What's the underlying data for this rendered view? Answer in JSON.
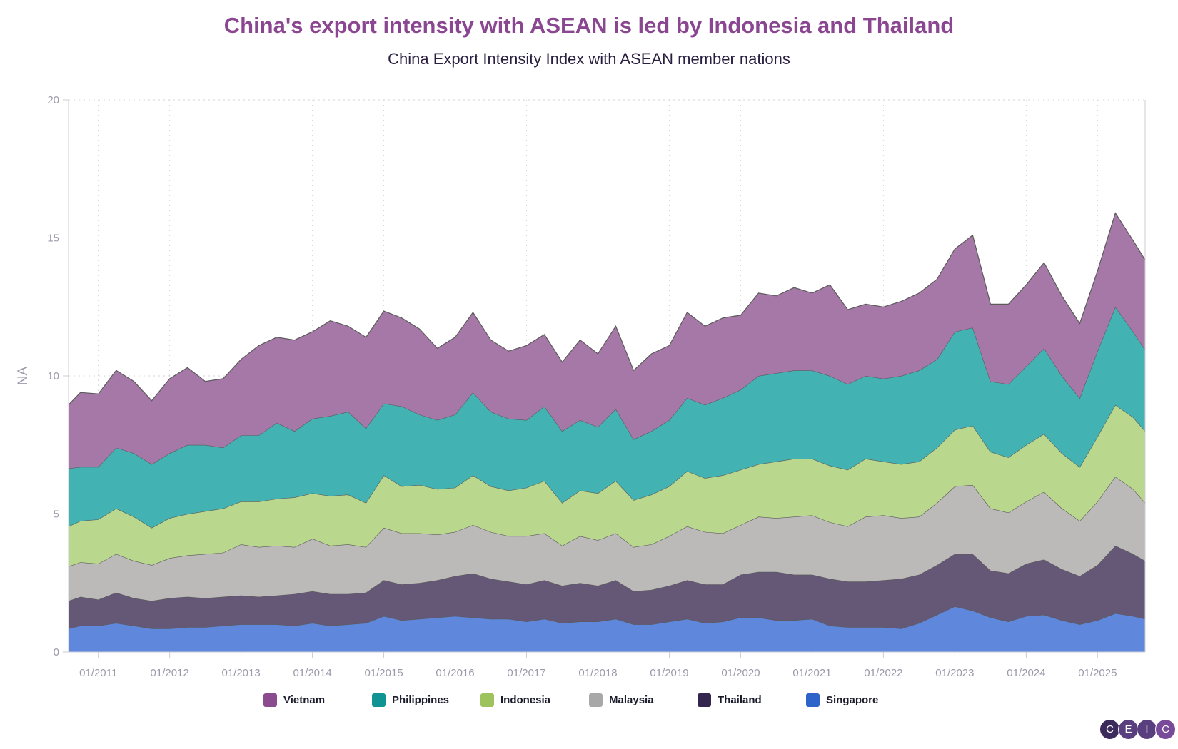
{
  "chart_data": {
    "type": "area",
    "stacked": true,
    "title": "China's export intensity with ASEAN is led by Indonesia and Thailand",
    "subtitle": "China Export Intensity Index with ASEAN member nations",
    "xlabel": "",
    "ylabel": "NA",
    "ylim": [
      0,
      20
    ],
    "yticks": [
      "0",
      "5",
      "10",
      "15",
      "20"
    ],
    "xticks": [
      "01/2011",
      "01/2012",
      "01/2013",
      "01/2014",
      "01/2015",
      "01/2016",
      "01/2017",
      "01/2018",
      "01/2019",
      "01/2020",
      "01/2021",
      "01/2022",
      "01/2023",
      "01/2024",
      "01/2025"
    ],
    "grid": true,
    "legend": "bottom",
    "x": [
      "2010-08",
      "2010-10",
      "2011-01",
      "2011-04",
      "2011-07",
      "2011-10",
      "2012-01",
      "2012-04",
      "2012-07",
      "2012-10",
      "2013-01",
      "2013-04",
      "2013-07",
      "2013-10",
      "2014-01",
      "2014-04",
      "2014-07",
      "2014-10",
      "2015-01",
      "2015-04",
      "2015-07",
      "2015-10",
      "2016-01",
      "2016-04",
      "2016-07",
      "2016-10",
      "2017-01",
      "2017-04",
      "2017-07",
      "2017-10",
      "2018-01",
      "2018-04",
      "2018-07",
      "2018-10",
      "2019-01",
      "2019-04",
      "2019-07",
      "2019-10",
      "2020-01",
      "2020-04",
      "2020-07",
      "2020-10",
      "2021-01",
      "2021-04",
      "2021-07",
      "2021-10",
      "2022-01",
      "2022-04",
      "2022-07",
      "2022-10",
      "2023-01",
      "2023-04",
      "2023-07",
      "2023-10",
      "2024-01",
      "2024-04",
      "2024-07",
      "2024-10",
      "2025-01",
      "2025-04",
      "2025-07",
      "2025-09"
    ],
    "series": [
      {
        "name": "Singapore",
        "color": "#2e63c9",
        "fill": "#5f87dc",
        "values": [
          0.85,
          0.95,
          0.95,
          1.05,
          0.95,
          0.85,
          0.85,
          0.9,
          0.9,
          0.95,
          1.0,
          1.0,
          1.0,
          0.95,
          1.05,
          0.95,
          1.0,
          1.05,
          1.3,
          1.15,
          1.2,
          1.25,
          1.3,
          1.25,
          1.2,
          1.2,
          1.1,
          1.2,
          1.05,
          1.1,
          1.1,
          1.2,
          1.0,
          1.0,
          1.1,
          1.2,
          1.05,
          1.1,
          1.25,
          1.25,
          1.15,
          1.15,
          1.2,
          0.95,
          0.9,
          0.9,
          0.9,
          0.85,
          1.05,
          1.35,
          1.65,
          1.5,
          1.25,
          1.1,
          1.3,
          1.35,
          1.15,
          1.0,
          1.15,
          1.4,
          1.3,
          1.2
        ]
      },
      {
        "name": "Thailand",
        "color": "#33254d",
        "fill": "#655876",
        "values": [
          1.0,
          1.05,
          0.95,
          1.1,
          1.0,
          1.0,
          1.1,
          1.1,
          1.05,
          1.05,
          1.05,
          1.0,
          1.05,
          1.15,
          1.15,
          1.15,
          1.1,
          1.1,
          1.3,
          1.3,
          1.3,
          1.35,
          1.45,
          1.6,
          1.45,
          1.35,
          1.35,
          1.4,
          1.35,
          1.4,
          1.3,
          1.4,
          1.2,
          1.25,
          1.3,
          1.4,
          1.4,
          1.35,
          1.55,
          1.65,
          1.75,
          1.65,
          1.6,
          1.7,
          1.65,
          1.65,
          1.7,
          1.8,
          1.75,
          1.8,
          1.9,
          2.05,
          1.7,
          1.75,
          1.9,
          2.0,
          1.85,
          1.75,
          2.0,
          2.45,
          2.25,
          2.1
        ]
      },
      {
        "name": "Malaysia",
        "color": "#a8a8a8",
        "fill": "#bbbab9",
        "values": [
          1.25,
          1.25,
          1.3,
          1.4,
          1.35,
          1.3,
          1.45,
          1.5,
          1.6,
          1.6,
          1.85,
          1.8,
          1.8,
          1.7,
          1.9,
          1.75,
          1.8,
          1.65,
          1.9,
          1.85,
          1.8,
          1.65,
          1.6,
          1.75,
          1.7,
          1.65,
          1.75,
          1.7,
          1.45,
          1.7,
          1.65,
          1.7,
          1.6,
          1.65,
          1.8,
          1.95,
          1.9,
          1.85,
          1.8,
          2.0,
          1.95,
          2.1,
          2.15,
          2.05,
          2.0,
          2.35,
          2.35,
          2.2,
          2.1,
          2.25,
          2.45,
          2.5,
          2.25,
          2.2,
          2.25,
          2.45,
          2.2,
          2.0,
          2.3,
          2.5,
          2.35,
          2.1
        ]
      },
      {
        "name": "Indonesia",
        "color": "#9dc35e",
        "fill": "#b9d78d",
        "values": [
          1.45,
          1.5,
          1.6,
          1.65,
          1.6,
          1.35,
          1.45,
          1.5,
          1.55,
          1.6,
          1.55,
          1.65,
          1.7,
          1.8,
          1.65,
          1.8,
          1.8,
          1.6,
          1.9,
          1.7,
          1.75,
          1.65,
          1.6,
          1.8,
          1.65,
          1.65,
          1.75,
          1.9,
          1.55,
          1.65,
          1.7,
          1.9,
          1.7,
          1.8,
          1.8,
          2.0,
          1.95,
          2.1,
          2.0,
          1.9,
          2.05,
          2.1,
          2.05,
          2.05,
          2.05,
          2.1,
          1.95,
          1.95,
          2.0,
          2.0,
          2.05,
          2.15,
          2.05,
          2.0,
          2.05,
          2.1,
          2.0,
          1.95,
          2.35,
          2.6,
          2.6,
          2.6
        ]
      },
      {
        "name": "Philippines",
        "color": "#0f9494",
        "fill": "#43b2b3",
        "values": [
          2.1,
          1.95,
          1.9,
          2.2,
          2.3,
          2.3,
          2.35,
          2.5,
          2.4,
          2.2,
          2.4,
          2.4,
          2.75,
          2.4,
          2.7,
          2.9,
          3.0,
          2.7,
          2.6,
          2.9,
          2.55,
          2.5,
          2.65,
          3.0,
          2.7,
          2.6,
          2.45,
          2.7,
          2.6,
          2.55,
          2.4,
          2.6,
          2.2,
          2.3,
          2.4,
          2.65,
          2.65,
          2.8,
          2.9,
          3.2,
          3.2,
          3.2,
          3.2,
          3.25,
          3.1,
          3.0,
          3.0,
          3.2,
          3.3,
          3.2,
          3.55,
          3.55,
          2.55,
          2.65,
          2.85,
          3.1,
          2.8,
          2.5,
          3.1,
          3.55,
          3.1,
          2.95
        ]
      },
      {
        "name": "Vietnam",
        "color": "#8b4c8f",
        "fill": "#a678a8",
        "values": [
          2.3,
          2.7,
          2.65,
          2.8,
          2.6,
          2.3,
          2.7,
          2.8,
          2.3,
          2.5,
          2.75,
          3.25,
          3.1,
          3.3,
          3.15,
          3.45,
          3.1,
          3.3,
          3.35,
          3.2,
          3.1,
          2.6,
          2.8,
          2.9,
          2.6,
          2.45,
          2.7,
          2.6,
          2.5,
          2.9,
          2.65,
          3.0,
          2.5,
          2.8,
          2.7,
          3.1,
          2.85,
          2.9,
          2.7,
          3.0,
          2.8,
          3.0,
          2.8,
          3.3,
          2.7,
          2.6,
          2.6,
          2.7,
          2.8,
          2.9,
          3.0,
          3.35,
          2.8,
          2.9,
          2.95,
          3.1,
          2.9,
          2.7,
          2.9,
          3.4,
          3.3,
          3.25
        ]
      }
    ],
    "legend_order": [
      "Vietnam",
      "Philippines",
      "Indonesia",
      "Malaysia",
      "Thailand",
      "Singapore"
    ]
  },
  "logo": {
    "letters": [
      "C",
      "E",
      "I",
      "C"
    ]
  }
}
